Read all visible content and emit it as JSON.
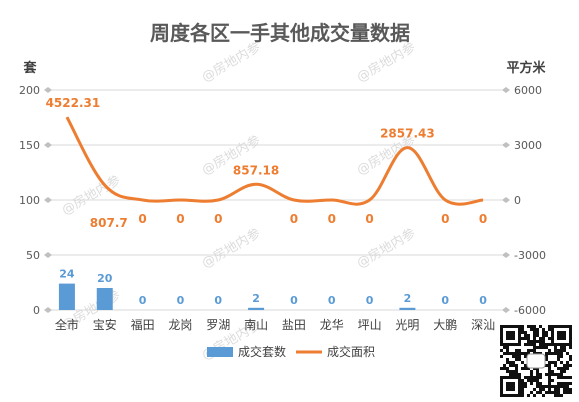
{
  "chart_data": {
    "type": "bar+line",
    "title": "周度各区一手其他成交量数据",
    "watermark": "@房地内参",
    "categories": [
      "全市",
      "宝安",
      "福田",
      "龙岗",
      "罗湖",
      "南山",
      "盐田",
      "龙华",
      "坪山",
      "光明",
      "大鹏",
      "深汕"
    ],
    "y_left": {
      "label": "套",
      "range": [
        0,
        200
      ],
      "ticks": [
        "0",
        "50",
        "100",
        "150",
        "200"
      ]
    },
    "y_right": {
      "label": "平方米",
      "range": [
        -6000,
        6000
      ],
      "ticks": [
        "-6000",
        "-3000",
        "0",
        "3000",
        "6000"
      ]
    },
    "series": [
      {
        "name": "成交套数",
        "kind": "bar",
        "axis": "left",
        "color": "#5b9bd5",
        "values": [
          24,
          20,
          0,
          0,
          0,
          2,
          0,
          0,
          0,
          2,
          0,
          0
        ],
        "labels": [
          "24",
          "20",
          "0",
          "0",
          "0",
          "2",
          "0",
          "0",
          "0",
          "2",
          "0",
          "0"
        ]
      },
      {
        "name": "成交面积",
        "kind": "line",
        "axis": "right",
        "color": "#ed7d31",
        "values": [
          4522.31,
          807.7,
          0,
          0,
          0,
          857.18,
          0,
          0,
          0,
          2857.43,
          0,
          0
        ],
        "labels": [
          "4522.31",
          "807.7",
          "0",
          "0",
          "0",
          "857.18",
          "0",
          "0",
          "0",
          "2857.43",
          "0",
          "0"
        ]
      }
    ],
    "grid": true,
    "legend_position": "bottom"
  }
}
